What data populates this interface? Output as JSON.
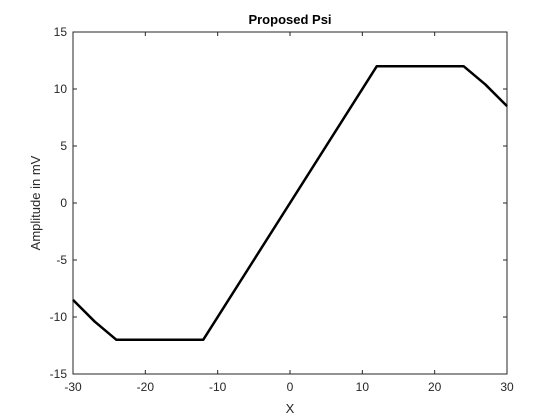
{
  "chart_data": {
    "type": "line",
    "title": "Proposed Psi",
    "xlabel": "X",
    "ylabel": "Amplitude in mV",
    "xlim": [
      -30,
      30
    ],
    "ylim": [
      -15,
      15
    ],
    "xticks": [
      "-30",
      "-20",
      "-10",
      "0",
      "10",
      "20",
      "30"
    ],
    "yticks": [
      "15",
      "10",
      "5",
      "0",
      "-5",
      "-10",
      "-15"
    ],
    "grid": false,
    "series": [
      {
        "color": "#000000",
        "x": [
          -30,
          -27,
          -24,
          -12,
          12,
          24,
          27,
          30
        ],
        "y": [
          -8.5,
          -10.4,
          -12,
          -12,
          12,
          12,
          10.4,
          8.5
        ]
      }
    ]
  }
}
